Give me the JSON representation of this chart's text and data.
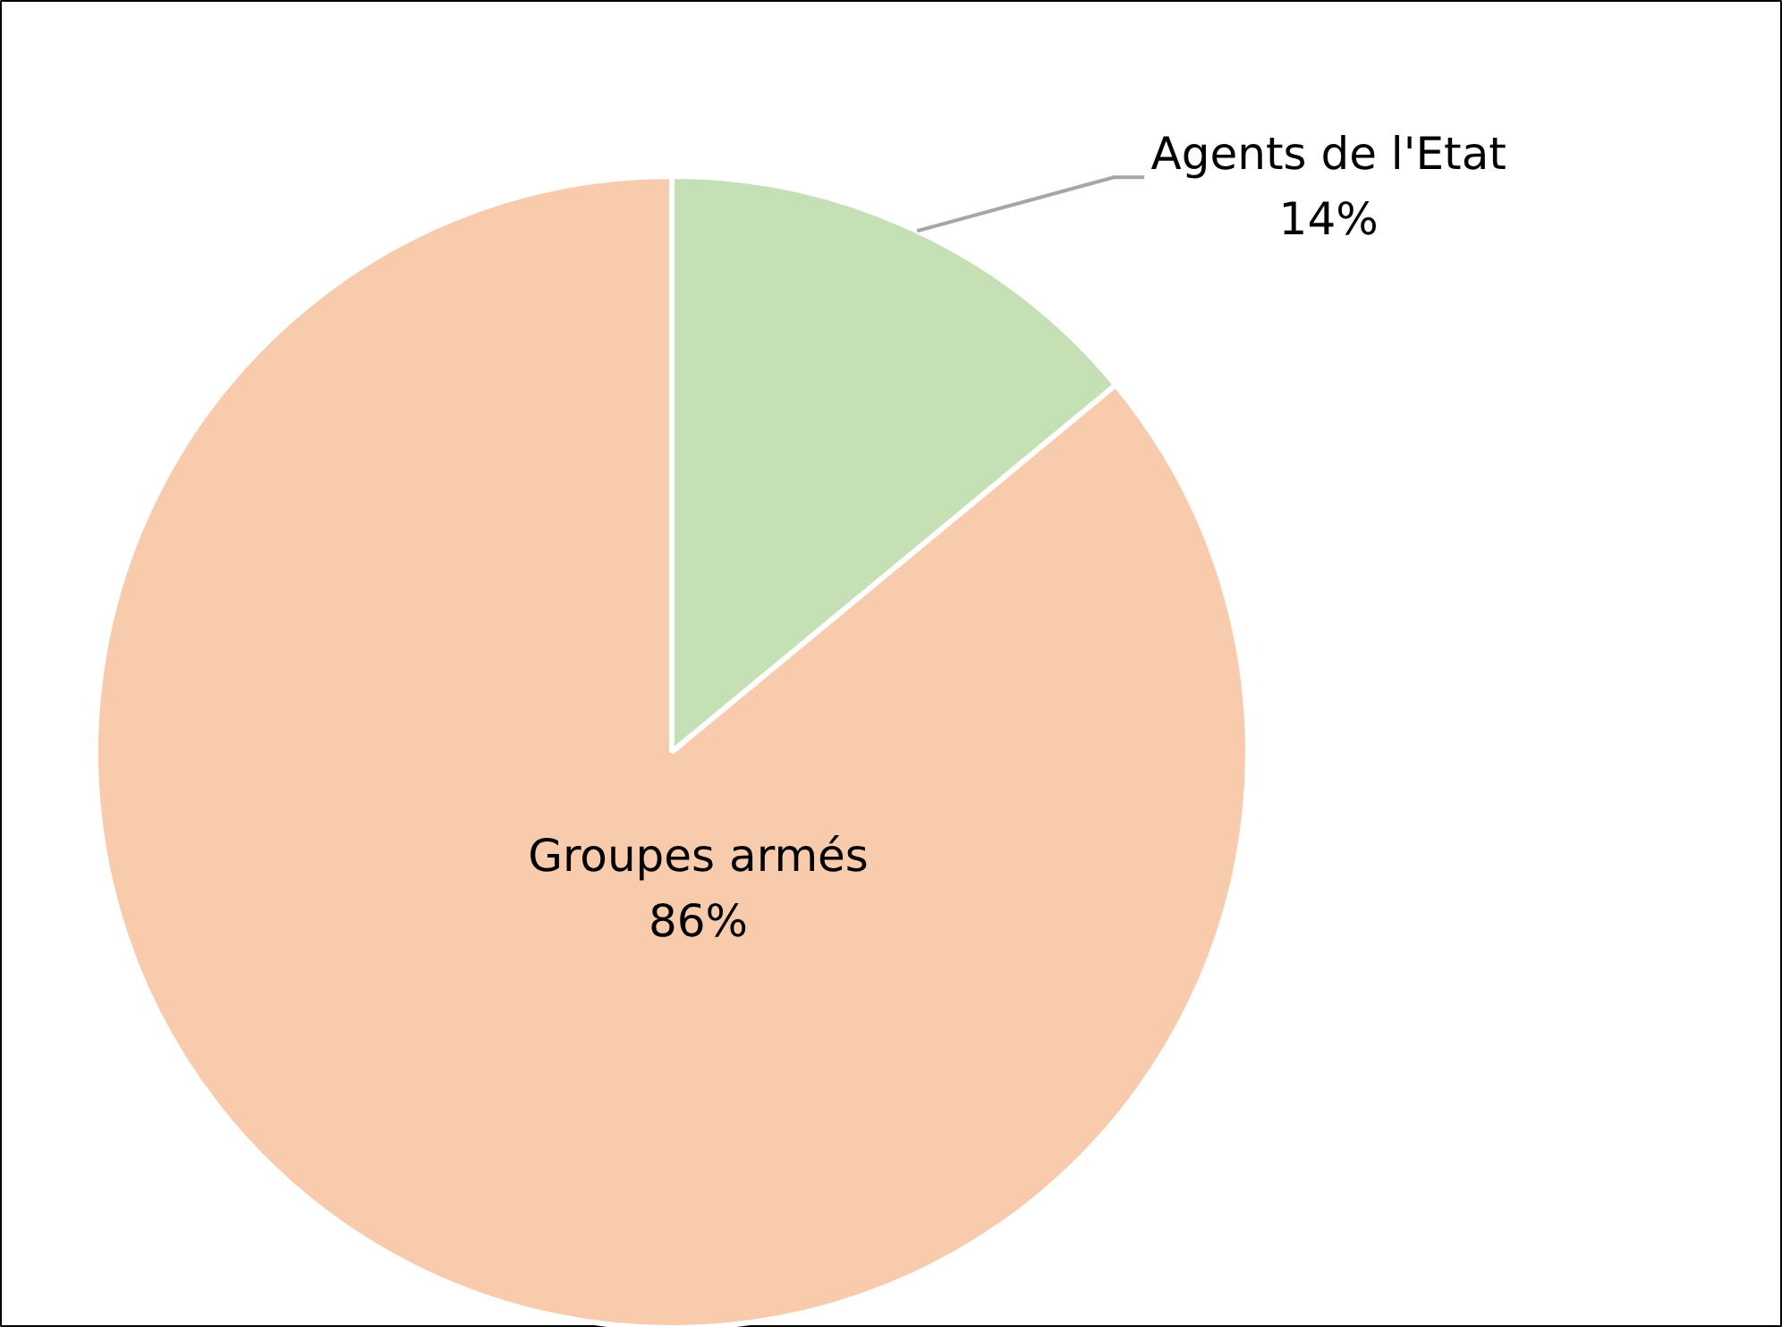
{
  "chart_data": {
    "type": "pie",
    "categories": [
      "Agents de l'Etat",
      "Groupes armés"
    ],
    "values": [
      14,
      86
    ],
    "colors": [
      "#c5e0b4",
      "#f8cbad"
    ],
    "value_labels": [
      "14%",
      "86%"
    ]
  }
}
